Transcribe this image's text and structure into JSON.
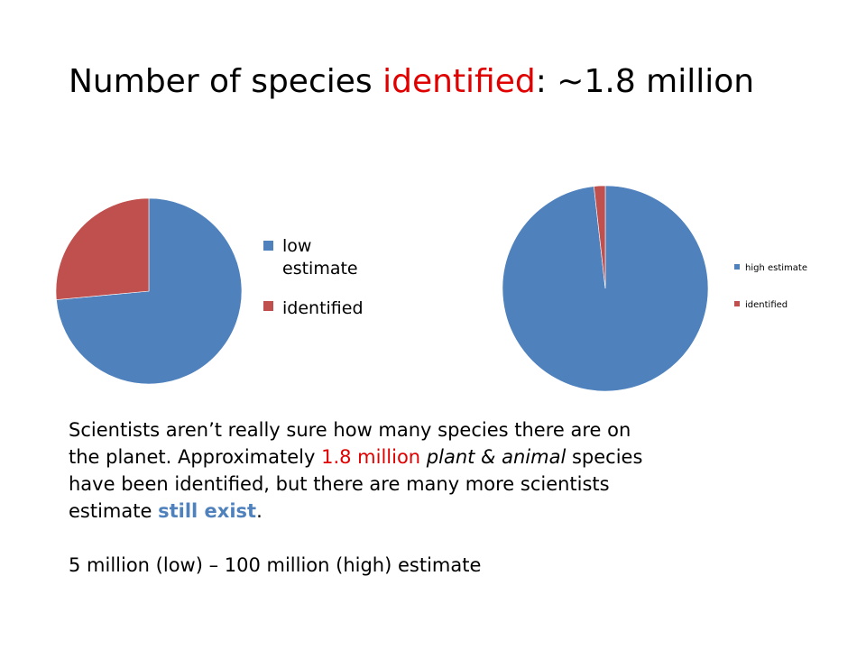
{
  "title": {
    "part1": "Number of species ",
    "highlight": "identified",
    "part2": ": ~1.8 million",
    "highlight_color": "#e00000"
  },
  "chart_data": [
    {
      "type": "pie",
      "categories": [
        "low estimate",
        "identified"
      ],
      "values": [
        5,
        1.8
      ],
      "colors": [
        "#4f81bd",
        "#c0504d"
      ],
      "legend": [
        "low estimate",
        "identified"
      ],
      "legend_placement": "right"
    },
    {
      "type": "pie",
      "categories": [
        "high estimate",
        "identified"
      ],
      "values": [
        100,
        1.8
      ],
      "colors": [
        "#4f81bd",
        "#c0504d"
      ],
      "legend": [
        "high estimate",
        "identified"
      ],
      "legend_placement": "right"
    }
  ],
  "body": {
    "line1": "Scientists aren’t really sure how many species there are on",
    "line2_a": "the planet.  Approximately ",
    "line2_highlight": "1.8 million",
    "line2_b": " ",
    "line2_italic": "plant & animal",
    "line2_c": " species",
    "line3": "have been identified, but there are many more scientists",
    "line4_a": "estimate ",
    "line4_highlight": "still exist",
    "line4_b": ".",
    "line5": "5 million (low) – 100 million (high) estimate",
    "highlight_red": "#e00000",
    "highlight_blue": "#4f81bd"
  }
}
